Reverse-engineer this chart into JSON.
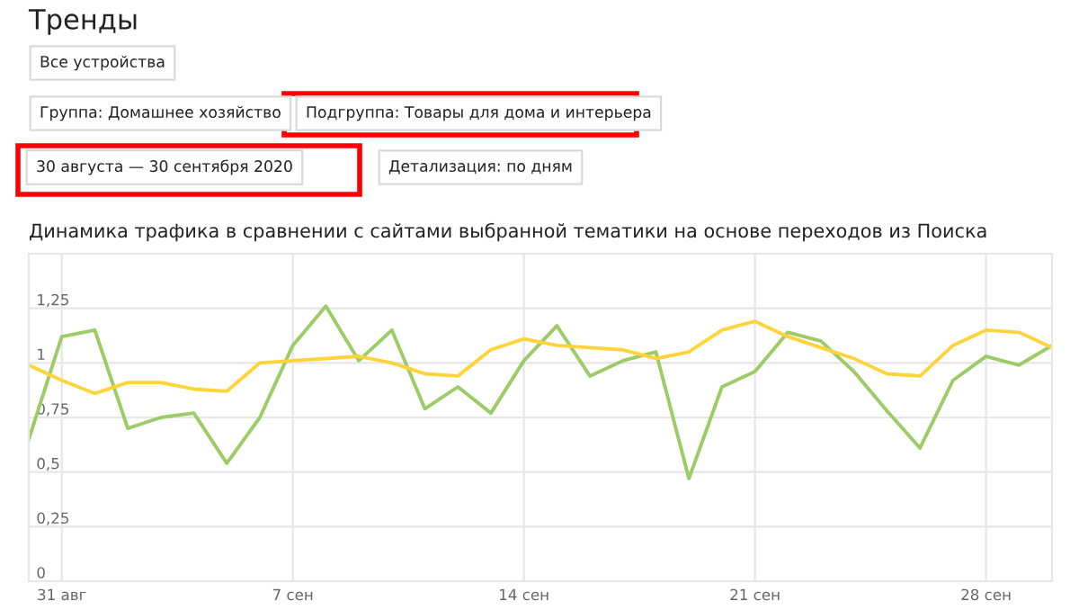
{
  "chart_data": {
    "type": "line",
    "title": "Динамика трафика в сравнении с сайтами выбранной тематики на основе переходов из Поиска",
    "annotations": [
      "Тренды",
      "Все устройства",
      "Группа: Домашнее хозяйство",
      "Подгруппа: Товары для дома и интерьера",
      "30 августа — 30 сентября 2020",
      "Детализация: по дням"
    ],
    "x": [
      "2020-08-30",
      "2020-08-31",
      "2020-09-01",
      "2020-09-02",
      "2020-09-03",
      "2020-09-04",
      "2020-09-05",
      "2020-09-06",
      "2020-09-07",
      "2020-09-08",
      "2020-09-09",
      "2020-09-10",
      "2020-09-11",
      "2020-09-12",
      "2020-09-13",
      "2020-09-14",
      "2020-09-15",
      "2020-09-16",
      "2020-09-17",
      "2020-09-18",
      "2020-09-19",
      "2020-09-20",
      "2020-09-21",
      "2020-09-22",
      "2020-09-23",
      "2020-09-24",
      "2020-09-25",
      "2020-09-26",
      "2020-09-27",
      "2020-09-28",
      "2020-09-29",
      "2020-09-30"
    ],
    "series": [
      {
        "color": "#9ccc65",
        "values": [
          0.65,
          1.12,
          1.15,
          0.7,
          0.75,
          0.77,
          0.54,
          0.75,
          1.08,
          1.26,
          1.01,
          1.15,
          0.79,
          0.89,
          0.77,
          1.01,
          1.17,
          0.94,
          1.01,
          1.05,
          0.47,
          0.89,
          0.96,
          1.14,
          1.1,
          0.96,
          0.78,
          0.61,
          0.92,
          1.03,
          0.99,
          1.08
        ]
      },
      {
        "color": "#ffd43b",
        "values": [
          0.99,
          0.92,
          0.86,
          0.91,
          0.91,
          0.88,
          0.87,
          1.0,
          1.01,
          1.02,
          1.03,
          1.0,
          0.95,
          0.94,
          1.06,
          1.11,
          1.08,
          1.07,
          1.06,
          1.02,
          1.05,
          1.15,
          1.19,
          1.12,
          1.07,
          1.02,
          0.95,
          0.94,
          1.08,
          1.15,
          1.14,
          1.07
        ]
      }
    ],
    "xlim": [
      "2020-08-30",
      "2020-09-30"
    ],
    "xticks": [
      {
        "value": "2020-08-31",
        "label": "31 авг"
      },
      {
        "value": "2020-09-07",
        "label": "7 сен"
      },
      {
        "value": "2020-09-14",
        "label": "14 сен"
      },
      {
        "value": "2020-09-21",
        "label": "21 сен"
      },
      {
        "value": "2020-09-28",
        "label": "28 сен"
      }
    ],
    "ylim": [
      0,
      1.5
    ],
    "yticks": [
      0,
      {
        "value": 0.25,
        "label": "0,25"
      },
      {
        "value": 0.5,
        "label": "0,5"
      },
      {
        "value": 0.75,
        "label": "0,75"
      },
      1,
      {
        "value": 1.25,
        "label": "1,25"
      }
    ],
    "grid": true,
    "marker": "none",
    "line_style": "solid"
  }
}
